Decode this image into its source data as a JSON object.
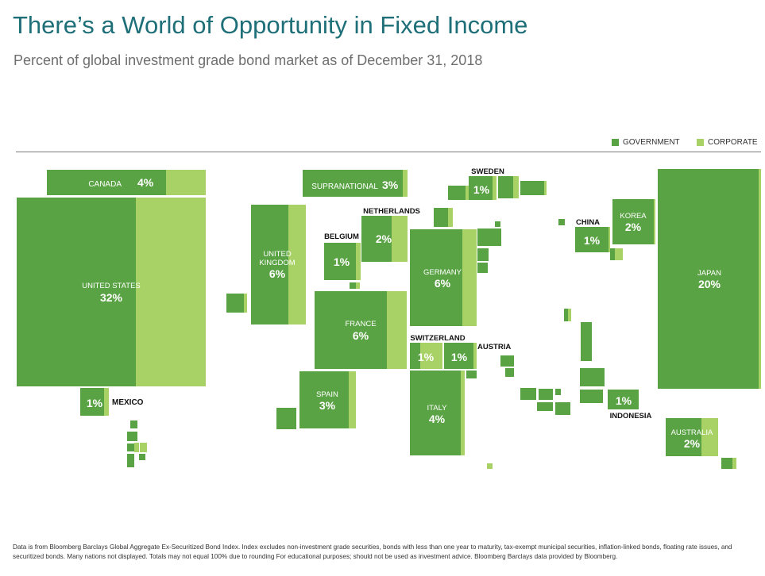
{
  "title": "There’s a World of Opportunity in Fixed Income",
  "subtitle": "Percent of global investment grade bond market as of December 31, 2018",
  "legend": {
    "government": "GOVERNMENT",
    "corporate": "CORPORATE"
  },
  "colors": {
    "government": "#5aa344",
    "corporate": "#a8d266",
    "title": "#1e6f78",
    "label_dark": "#111111",
    "label_light": "#ffffff"
  },
  "footnote": "Data is from Bloomberg Barclays Global Aggregate Ex-Securitized Bond Index. Index excludes non-investment grade securities, bonds with less than one year to maturity, tax-exempt municipal securities, inflation-linked bonds, floating rate issues, and securitized bonds. Many nations not displayed. Totals may not equal 100% due to rounding For educational purposes; should not be used as investment advice. Bloomberg Barclays data provided by Bloomberg.",
  "chart_data": {
    "type": "treemap-map",
    "series": [
      "GOVERNMENT",
      "CORPORATE"
    ],
    "countries": [
      {
        "name": "UNITED STATES",
        "share": "32%"
      },
      {
        "name": "JAPAN",
        "share": "20%"
      },
      {
        "name": "UNITED KINGDOM",
        "share": "6%"
      },
      {
        "name": "GERMANY",
        "share": "6%"
      },
      {
        "name": "FRANCE",
        "share": "6%"
      },
      {
        "name": "CANADA",
        "share": "4%"
      },
      {
        "name": "ITALY",
        "share": "4%"
      },
      {
        "name": "SUPRANATIONAL",
        "share": "3%"
      },
      {
        "name": "SPAIN",
        "share": "3%"
      },
      {
        "name": "NETHERLANDS",
        "share": "2%"
      },
      {
        "name": "KOREA",
        "share": "2%"
      },
      {
        "name": "AUSTRALIA",
        "share": "2%"
      },
      {
        "name": "MEXICO",
        "share": "1%"
      },
      {
        "name": "BELGIUM",
        "share": "1%"
      },
      {
        "name": "SWEDEN",
        "share": "1%"
      },
      {
        "name": "SWITZERLAND",
        "share": "1%"
      },
      {
        "name": "AUSTRIA",
        "share": "1%"
      },
      {
        "name": "CHINA",
        "share": "1%"
      },
      {
        "name": "INDONESIA",
        "share": "1%"
      }
    ]
  }
}
